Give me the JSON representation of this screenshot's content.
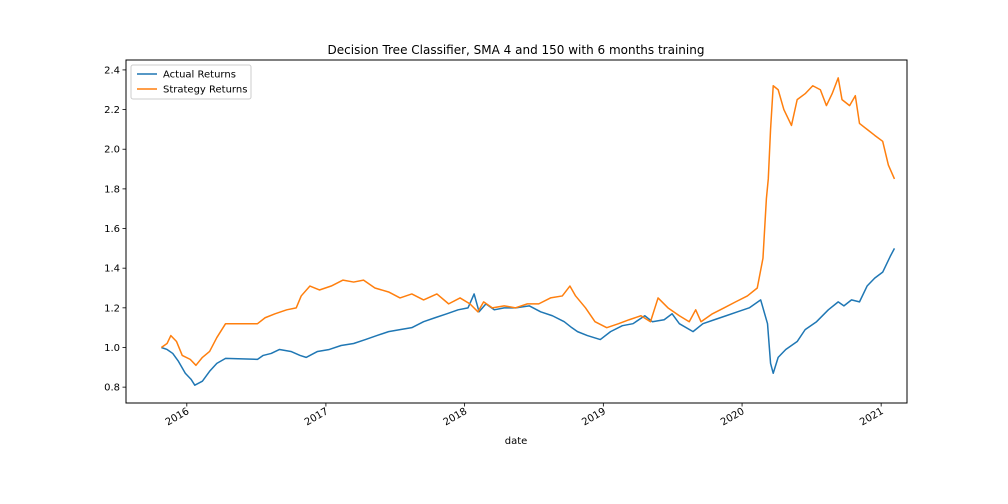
{
  "chart_data": {
    "type": "line",
    "title": "Decision Tree Classifier, SMA 4 and 150 with 6 months training",
    "xlabel": "date",
    "ylabel": "",
    "xlim": [
      "2015-07-25",
      "2021-03-10"
    ],
    "ylim": [
      0.72,
      2.45
    ],
    "x_ticks": [
      "2016",
      "2017",
      "2018",
      "2019",
      "2020",
      "2021"
    ],
    "y_ticks": [
      "0.8",
      "1.0",
      "1.2",
      "1.4",
      "1.6",
      "1.8",
      "2.0",
      "2.2",
      "2.4"
    ],
    "grid": false,
    "legend": "upper-left",
    "series": [
      {
        "name": "Actual Returns",
        "color": "#1f77b4",
        "points": [
          [
            "2015-10-26",
            1.0
          ],
          [
            "2015-11-10",
            0.99
          ],
          [
            "2015-11-25",
            0.97
          ],
          [
            "2015-12-10",
            0.93
          ],
          [
            "2015-12-28",
            0.87
          ],
          [
            "2016-01-12",
            0.84
          ],
          [
            "2016-01-22",
            0.81
          ],
          [
            "2016-02-11",
            0.83
          ],
          [
            "2016-03-01",
            0.88
          ],
          [
            "2016-03-20",
            0.92
          ],
          [
            "2016-04-12",
            0.945
          ],
          [
            "2016-07-05",
            0.94
          ],
          [
            "2016-07-20",
            0.96
          ],
          [
            "2016-08-10",
            0.97
          ],
          [
            "2016-09-01",
            0.99
          ],
          [
            "2016-10-01",
            0.98
          ],
          [
            "2016-10-25",
            0.96
          ],
          [
            "2016-11-10",
            0.95
          ],
          [
            "2016-12-10",
            0.98
          ],
          [
            "2017-01-10",
            0.99
          ],
          [
            "2017-02-10",
            1.01
          ],
          [
            "2017-03-15",
            1.02
          ],
          [
            "2017-04-15",
            1.04
          ],
          [
            "2017-05-15",
            1.06
          ],
          [
            "2017-06-15",
            1.08
          ],
          [
            "2017-07-15",
            1.09
          ],
          [
            "2017-08-15",
            1.1
          ],
          [
            "2017-09-15",
            1.13
          ],
          [
            "2017-10-15",
            1.15
          ],
          [
            "2017-11-15",
            1.17
          ],
          [
            "2017-12-15",
            1.19
          ],
          [
            "2018-01-10",
            1.2
          ],
          [
            "2018-01-26",
            1.27
          ],
          [
            "2018-02-08",
            1.18
          ],
          [
            "2018-02-26",
            1.22
          ],
          [
            "2018-03-20",
            1.19
          ],
          [
            "2018-04-15",
            1.2
          ],
          [
            "2018-05-15",
            1.2
          ],
          [
            "2018-06-20",
            1.21
          ],
          [
            "2018-07-20",
            1.18
          ],
          [
            "2018-08-20",
            1.16
          ],
          [
            "2018-09-20",
            1.13
          ],
          [
            "2018-10-10",
            1.1
          ],
          [
            "2018-10-25",
            1.08
          ],
          [
            "2018-11-20",
            1.06
          ],
          [
            "2018-12-24",
            1.04
          ],
          [
            "2019-01-20",
            1.08
          ],
          [
            "2019-02-20",
            1.11
          ],
          [
            "2019-03-20",
            1.12
          ],
          [
            "2019-04-20",
            1.16
          ],
          [
            "2019-05-10",
            1.13
          ],
          [
            "2019-06-10",
            1.14
          ],
          [
            "2019-07-01",
            1.17
          ],
          [
            "2019-07-20",
            1.12
          ],
          [
            "2019-08-25",
            1.08
          ],
          [
            "2019-09-20",
            1.12
          ],
          [
            "2019-10-20",
            1.14
          ],
          [
            "2019-11-20",
            1.16
          ],
          [
            "2019-12-20",
            1.18
          ],
          [
            "2020-01-20",
            1.2
          ],
          [
            "2020-02-19",
            1.24
          ],
          [
            "2020-03-08",
            1.12
          ],
          [
            "2020-03-16",
            0.92
          ],
          [
            "2020-03-23",
            0.87
          ],
          [
            "2020-04-05",
            0.95
          ],
          [
            "2020-04-25",
            0.99
          ],
          [
            "2020-05-25",
            1.03
          ],
          [
            "2020-06-15",
            1.09
          ],
          [
            "2020-07-15",
            1.13
          ],
          [
            "2020-08-15",
            1.19
          ],
          [
            "2020-09-10",
            1.23
          ],
          [
            "2020-09-25",
            1.21
          ],
          [
            "2020-10-15",
            1.24
          ],
          [
            "2020-11-05",
            1.23
          ],
          [
            "2020-11-25",
            1.31
          ],
          [
            "2020-12-15",
            1.35
          ],
          [
            "2021-01-05",
            1.38
          ],
          [
            "2021-01-25",
            1.46
          ],
          [
            "2021-02-05",
            1.5
          ]
        ]
      },
      {
        "name": "Strategy Returns",
        "color": "#ff7f0e",
        "points": [
          [
            "2015-10-26",
            1.0
          ],
          [
            "2015-11-10",
            1.02
          ],
          [
            "2015-11-20",
            1.06
          ],
          [
            "2015-12-05",
            1.03
          ],
          [
            "2015-12-20",
            0.96
          ],
          [
            "2016-01-10",
            0.94
          ],
          [
            "2016-01-25",
            0.91
          ],
          [
            "2016-02-11",
            0.95
          ],
          [
            "2016-03-01",
            0.98
          ],
          [
            "2016-03-20",
            1.05
          ],
          [
            "2016-04-12",
            1.12
          ],
          [
            "2016-07-05",
            1.12
          ],
          [
            "2016-07-25",
            1.15
          ],
          [
            "2016-08-20",
            1.17
          ],
          [
            "2016-09-20",
            1.19
          ],
          [
            "2016-10-15",
            1.2
          ],
          [
            "2016-10-28",
            1.26
          ],
          [
            "2016-11-20",
            1.31
          ],
          [
            "2016-12-15",
            1.29
          ],
          [
            "2017-01-15",
            1.31
          ],
          [
            "2017-02-15",
            1.34
          ],
          [
            "2017-03-15",
            1.33
          ],
          [
            "2017-04-10",
            1.34
          ],
          [
            "2017-05-10",
            1.3
          ],
          [
            "2017-06-15",
            1.28
          ],
          [
            "2017-07-15",
            1.25
          ],
          [
            "2017-08-15",
            1.27
          ],
          [
            "2017-09-15",
            1.24
          ],
          [
            "2017-10-20",
            1.27
          ],
          [
            "2017-11-20",
            1.22
          ],
          [
            "2017-12-20",
            1.25
          ],
          [
            "2018-01-15",
            1.22
          ],
          [
            "2018-02-05",
            1.18
          ],
          [
            "2018-02-20",
            1.23
          ],
          [
            "2018-03-15",
            1.2
          ],
          [
            "2018-04-15",
            1.21
          ],
          [
            "2018-05-15",
            1.2
          ],
          [
            "2018-06-15",
            1.22
          ],
          [
            "2018-07-15",
            1.22
          ],
          [
            "2018-08-15",
            1.25
          ],
          [
            "2018-09-15",
            1.26
          ],
          [
            "2018-10-05",
            1.31
          ],
          [
            "2018-10-20",
            1.26
          ],
          [
            "2018-11-15",
            1.2
          ],
          [
            "2018-12-10",
            1.13
          ],
          [
            "2019-01-10",
            1.1
          ],
          [
            "2019-02-10",
            1.12
          ],
          [
            "2019-03-10",
            1.14
          ],
          [
            "2019-04-10",
            1.16
          ],
          [
            "2019-05-05",
            1.13
          ],
          [
            "2019-05-25",
            1.25
          ],
          [
            "2019-06-20",
            1.2
          ],
          [
            "2019-07-20",
            1.16
          ],
          [
            "2019-08-15",
            1.13
          ],
          [
            "2019-09-01",
            1.19
          ],
          [
            "2019-09-15",
            1.13
          ],
          [
            "2019-10-15",
            1.17
          ],
          [
            "2019-11-15",
            1.2
          ],
          [
            "2019-12-15",
            1.23
          ],
          [
            "2020-01-15",
            1.26
          ],
          [
            "2020-02-10",
            1.3
          ],
          [
            "2020-02-25",
            1.45
          ],
          [
            "2020-03-05",
            1.75
          ],
          [
            "2020-03-10",
            1.85
          ],
          [
            "2020-03-16",
            2.1
          ],
          [
            "2020-03-23",
            2.32
          ],
          [
            "2020-04-05",
            2.3
          ],
          [
            "2020-04-20",
            2.2
          ],
          [
            "2020-05-10",
            2.12
          ],
          [
            "2020-05-25",
            2.25
          ],
          [
            "2020-06-15",
            2.28
          ],
          [
            "2020-07-05",
            2.32
          ],
          [
            "2020-07-25",
            2.3
          ],
          [
            "2020-08-10",
            2.22
          ],
          [
            "2020-08-25",
            2.28
          ],
          [
            "2020-09-10",
            2.36
          ],
          [
            "2020-09-20",
            2.25
          ],
          [
            "2020-10-10",
            2.22
          ],
          [
            "2020-10-25",
            2.27
          ],
          [
            "2020-11-05",
            2.13
          ],
          [
            "2020-11-25",
            2.1
          ],
          [
            "2020-12-15",
            2.07
          ],
          [
            "2021-01-05",
            2.04
          ],
          [
            "2021-01-20",
            1.92
          ],
          [
            "2021-02-05",
            1.85
          ]
        ]
      }
    ]
  }
}
